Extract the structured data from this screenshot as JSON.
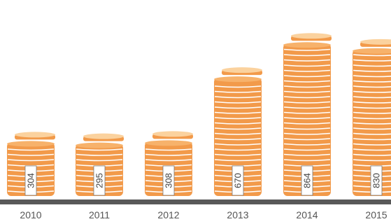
{
  "chart_data": {
    "type": "bar",
    "categories": [
      "2010",
      "2011",
      "2012",
      "2013",
      "2014",
      "2015"
    ],
    "values": [
      304,
      295,
      308,
      670,
      864,
      830
    ],
    "title": "",
    "xlabel": "",
    "ylabel": "",
    "grid": false,
    "legend": "none"
  },
  "colors": {
    "coin_face": "#f29a4a",
    "coin_edge": "#f7b26b",
    "coin_top": "#fbd29e",
    "coin_line": "#ffffff",
    "baseline": "#595959",
    "label_box": "#ffffff",
    "label_border": "#7a7a7a"
  }
}
